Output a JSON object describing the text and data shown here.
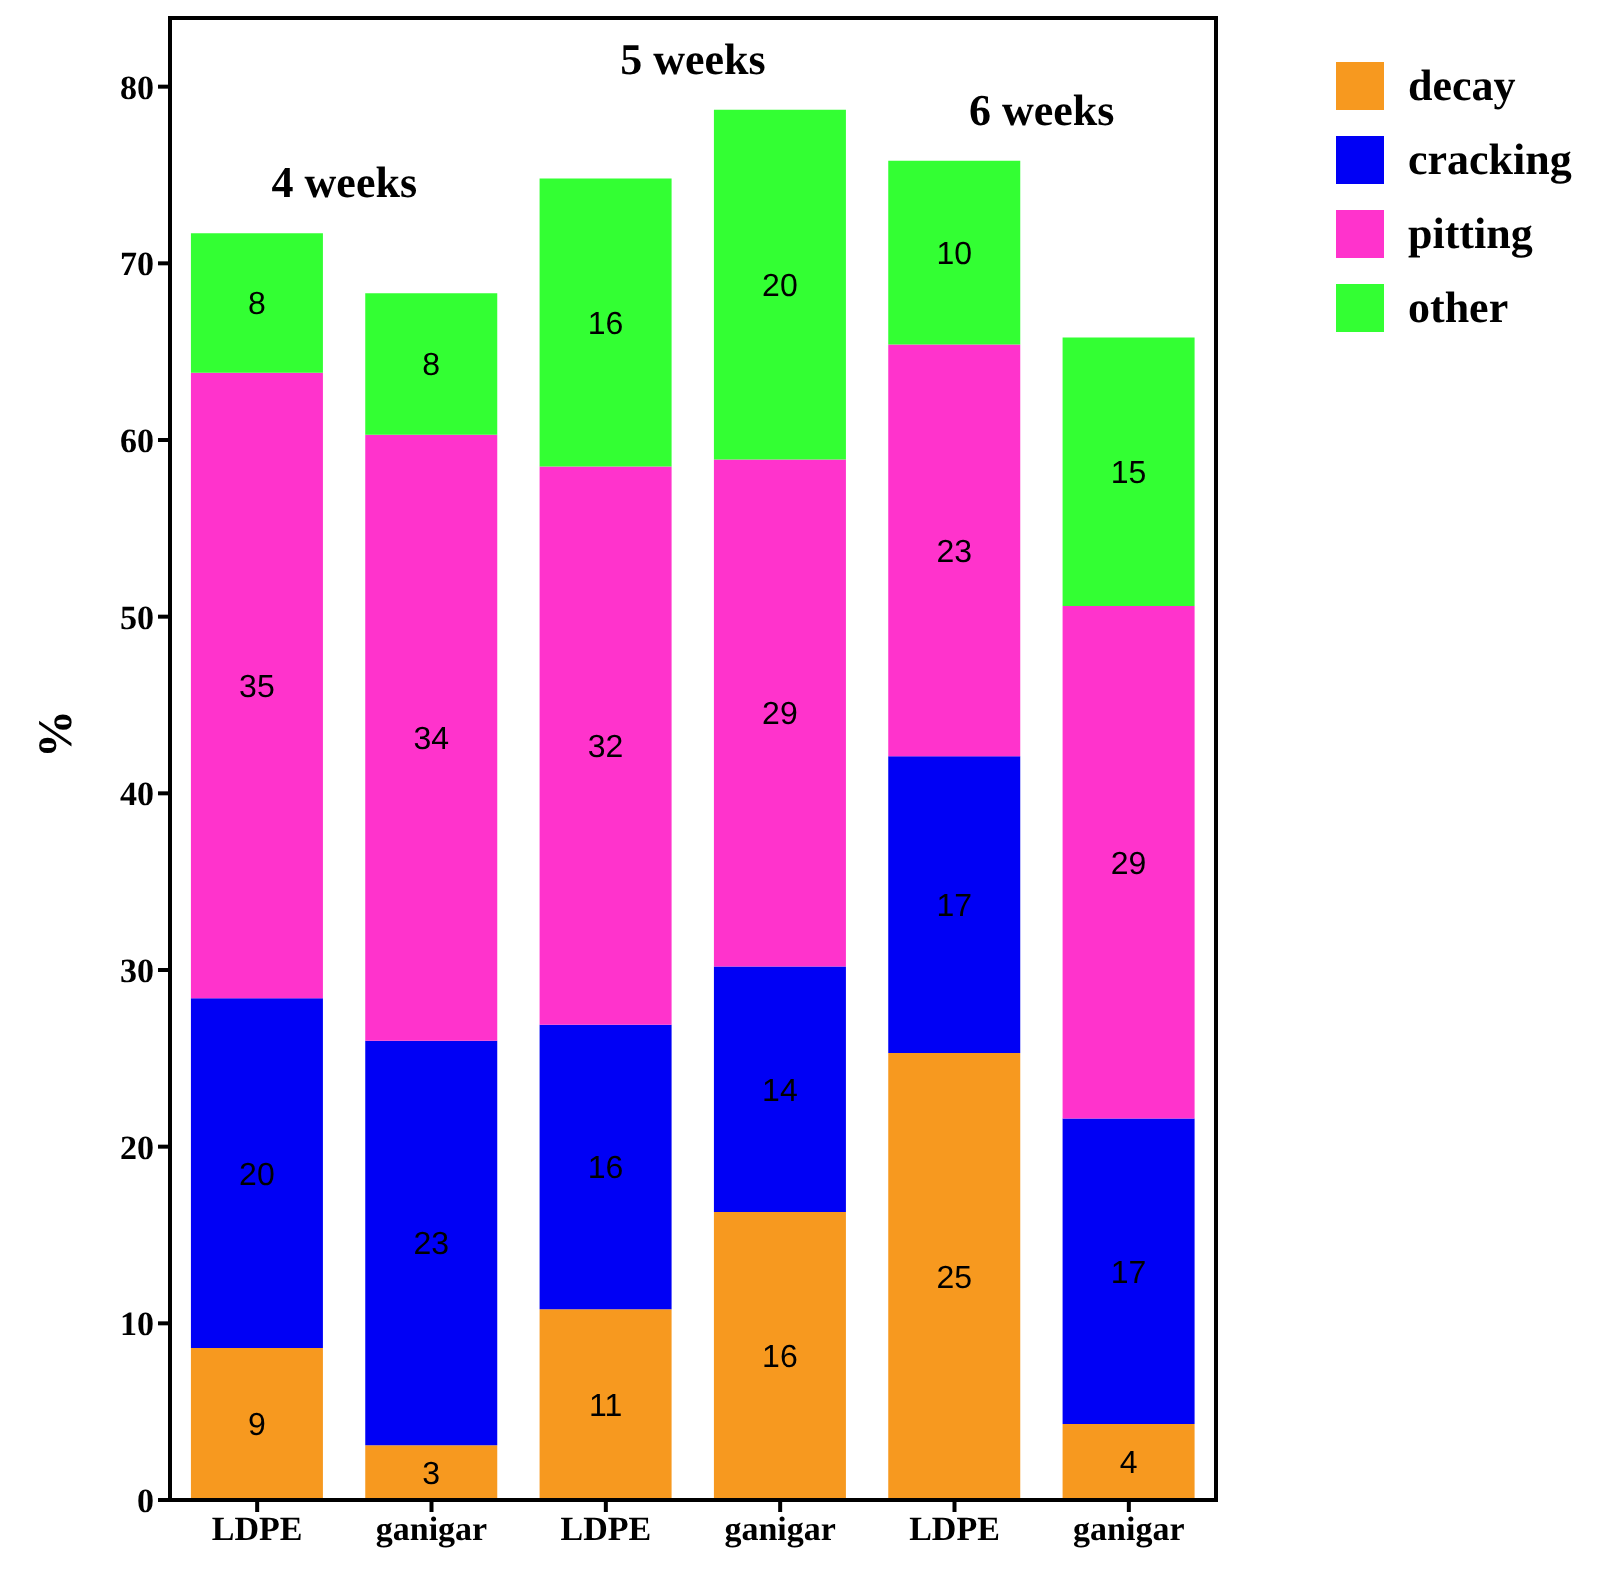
{
  "chart_data": {
    "type": "bar",
    "stacked": true,
    "ylabel": "%",
    "categories": [
      "LDPE",
      "ganigar",
      "LDPE",
      "ganigar",
      "LDPE",
      "ganigar"
    ],
    "series": [
      {
        "name": "decay",
        "color": "#f7991f",
        "values": [
          8.6,
          3.1,
          10.8,
          16.3,
          25.3,
          4.3
        ],
        "value_labels": [
          "9",
          "3",
          "11",
          "16",
          "25",
          "4"
        ]
      },
      {
        "name": "cracking",
        "color": "#0000f5",
        "values": [
          19.8,
          22.9,
          16.1,
          13.9,
          16.8,
          17.3
        ],
        "value_labels": [
          "20",
          "23",
          "16",
          "14",
          "17",
          "17"
        ]
      },
      {
        "name": "pitting",
        "color": "#ff33cc",
        "values": [
          35.4,
          34.3,
          31.6,
          28.7,
          23.3,
          29.0
        ],
        "value_labels": [
          "35",
          "34",
          "32",
          "29",
          "23",
          "29"
        ]
      },
      {
        "name": "other",
        "color": "#33ff33",
        "values": [
          7.9,
          8.0,
          16.3,
          19.8,
          10.4,
          15.2
        ],
        "value_labels": [
          "8",
          "8",
          "16",
          "20",
          "10",
          "15"
        ]
      }
    ],
    "annotations": [
      "4 weeks",
      "5 weeks",
      "6 weeks"
    ],
    "ylim": [
      0,
      84
    ],
    "yticks": [
      0,
      10,
      20,
      30,
      40,
      50,
      60,
      70,
      80
    ],
    "grid": false,
    "legend": "top right"
  }
}
